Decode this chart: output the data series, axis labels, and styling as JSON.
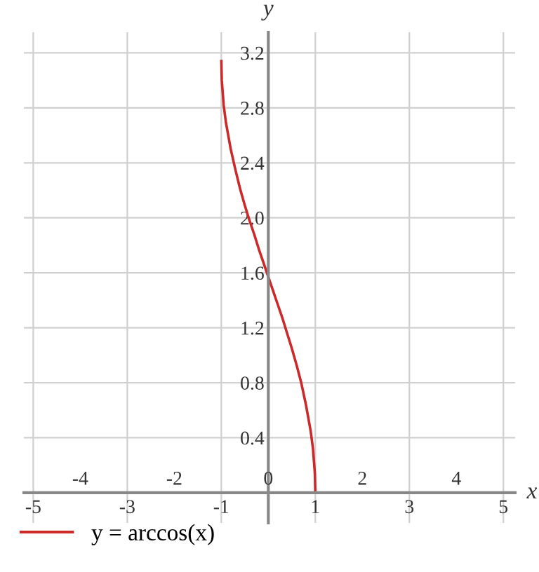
{
  "chart_data": {
    "type": "line",
    "xlabel": "x",
    "ylabel": "y",
    "x": [
      -1,
      -0.99,
      -0.95,
      -0.9,
      -0.8,
      -0.7,
      -0.6,
      -0.5,
      -0.4,
      -0.3,
      -0.2,
      -0.1,
      0,
      0.1,
      0.2,
      0.3,
      0.4,
      0.5,
      0.6,
      0.7,
      0.8,
      0.9,
      0.95,
      0.99,
      1
    ],
    "series": [
      {
        "name": "y = arccos(x)",
        "color": "#cc2a2a",
        "values": [
          3.14,
          3.0,
          2.82,
          2.69,
          2.5,
          2.35,
          2.21,
          2.09,
          1.98,
          1.88,
          1.77,
          1.67,
          1.57,
          1.47,
          1.37,
          1.27,
          1.16,
          1.05,
          0.93,
          0.8,
          0.64,
          0.45,
          0.32,
          0.14,
          0
        ]
      }
    ],
    "xlim": [
      -5.2,
      5.25
    ],
    "ylim": [
      -0.22,
      3.35
    ],
    "xticks": [
      -5,
      -3,
      -1,
      1,
      3,
      5
    ],
    "x2lim": [
      -5.2,
      5.25
    ],
    "x2ticks": [
      -4,
      -2,
      0,
      2,
      4
    ],
    "yticks": [
      0.4,
      0.8,
      1.2,
      1.6,
      {
        "value": 2.0,
        "label": "2.0"
      },
      2.4,
      2.8,
      3.2
    ],
    "grid": true,
    "legend": "bottom left",
    "marker": "none",
    "line_style": "solid"
  }
}
